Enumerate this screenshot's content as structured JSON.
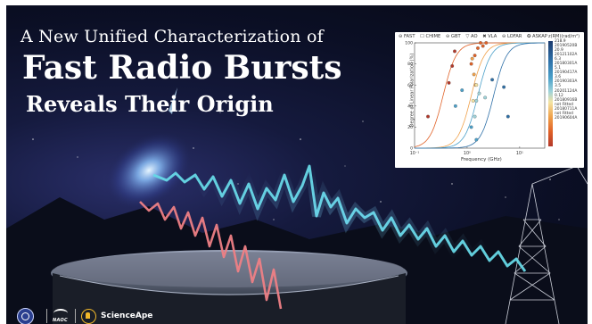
{
  "poster": {
    "title_line1": "A New Unified Characterization of",
    "title_line2": "Fast Radio Bursts",
    "title_line3": "Reveals Their Origin"
  },
  "chart": {
    "legend": [
      "⊖ FAST",
      "☐ CHIME",
      "⊖ GBT",
      "▽ AO",
      "✖ VLA",
      "⊖ LOFAR",
      "✪ ASKAP"
    ],
    "colorbar_title": "z(RM)(rad/m²)",
    "ylabel": "Degree of Linear Polarization (%)",
    "xlabel": "Frequency (GHz)",
    "y_ticks": [
      "100",
      "80",
      "60",
      "40",
      "20",
      "0"
    ],
    "x_ticks": [
      "10⁻¹",
      "10⁰",
      "10¹"
    ],
    "colorbar_labels": [
      "218.9",
      "20190520B",
      "20.9",
      "20121102A",
      "6.3",
      "20180301A",
      "5.1",
      "20190417A",
      "3.6",
      "20190303A",
      "3.5",
      "20201124A",
      "0.12",
      "20180916B",
      "not Fitted",
      "20180711A",
      "not Fitted",
      "20190604A"
    ]
  },
  "chart_data": {
    "type": "scatter",
    "xlabel": "Frequency (GHz)",
    "ylabel": "Degree of Linear Polarization (%)",
    "xscale": "log",
    "xlim": [
      0.1,
      30
    ],
    "ylim": [
      0,
      100
    ],
    "series": [
      {
        "name": "20190520B",
        "color": "#b2382a",
        "x": [
          0.18,
          0.45,
          0.52,
          0.58
        ],
        "y": [
          30,
          62,
          78,
          92
        ]
      },
      {
        "name": "20121102A",
        "color": "#e06127",
        "x": [
          1.2,
          1.4,
          1.6,
          1.8,
          2.0,
          2.3
        ],
        "y": [
          80,
          88,
          95,
          100,
          97,
          100
        ]
      },
      {
        "name": "20180301A",
        "color": "#f0a14a",
        "x": [
          1.25,
          1.35,
          1.45
        ],
        "y": [
          85,
          70,
          60
        ]
      },
      {
        "name": "20190417A",
        "color": "#f4e4a4",
        "x": [
          1.3,
          1.5
        ],
        "y": [
          45,
          60
        ]
      },
      {
        "name": "20190303A",
        "color": "#9fd3d9",
        "x": [
          1.4,
          1.5,
          1.7,
          2.2
        ],
        "y": [
          30,
          45,
          52,
          48
        ]
      },
      {
        "name": "20201124A",
        "color": "#4aa0c9",
        "x": [
          0.6,
          0.8,
          1.2,
          1.5
        ],
        "y": [
          40,
          55,
          20,
          8
        ]
      },
      {
        "name": "20180916B",
        "color": "#2d6fa7",
        "x": [
          3.0,
          5.0,
          6.0
        ],
        "y": [
          65,
          58,
          30
        ]
      }
    ]
  },
  "footer": {
    "naoc_label": "NAOC",
    "scienceape_label": "ScienceApe"
  }
}
